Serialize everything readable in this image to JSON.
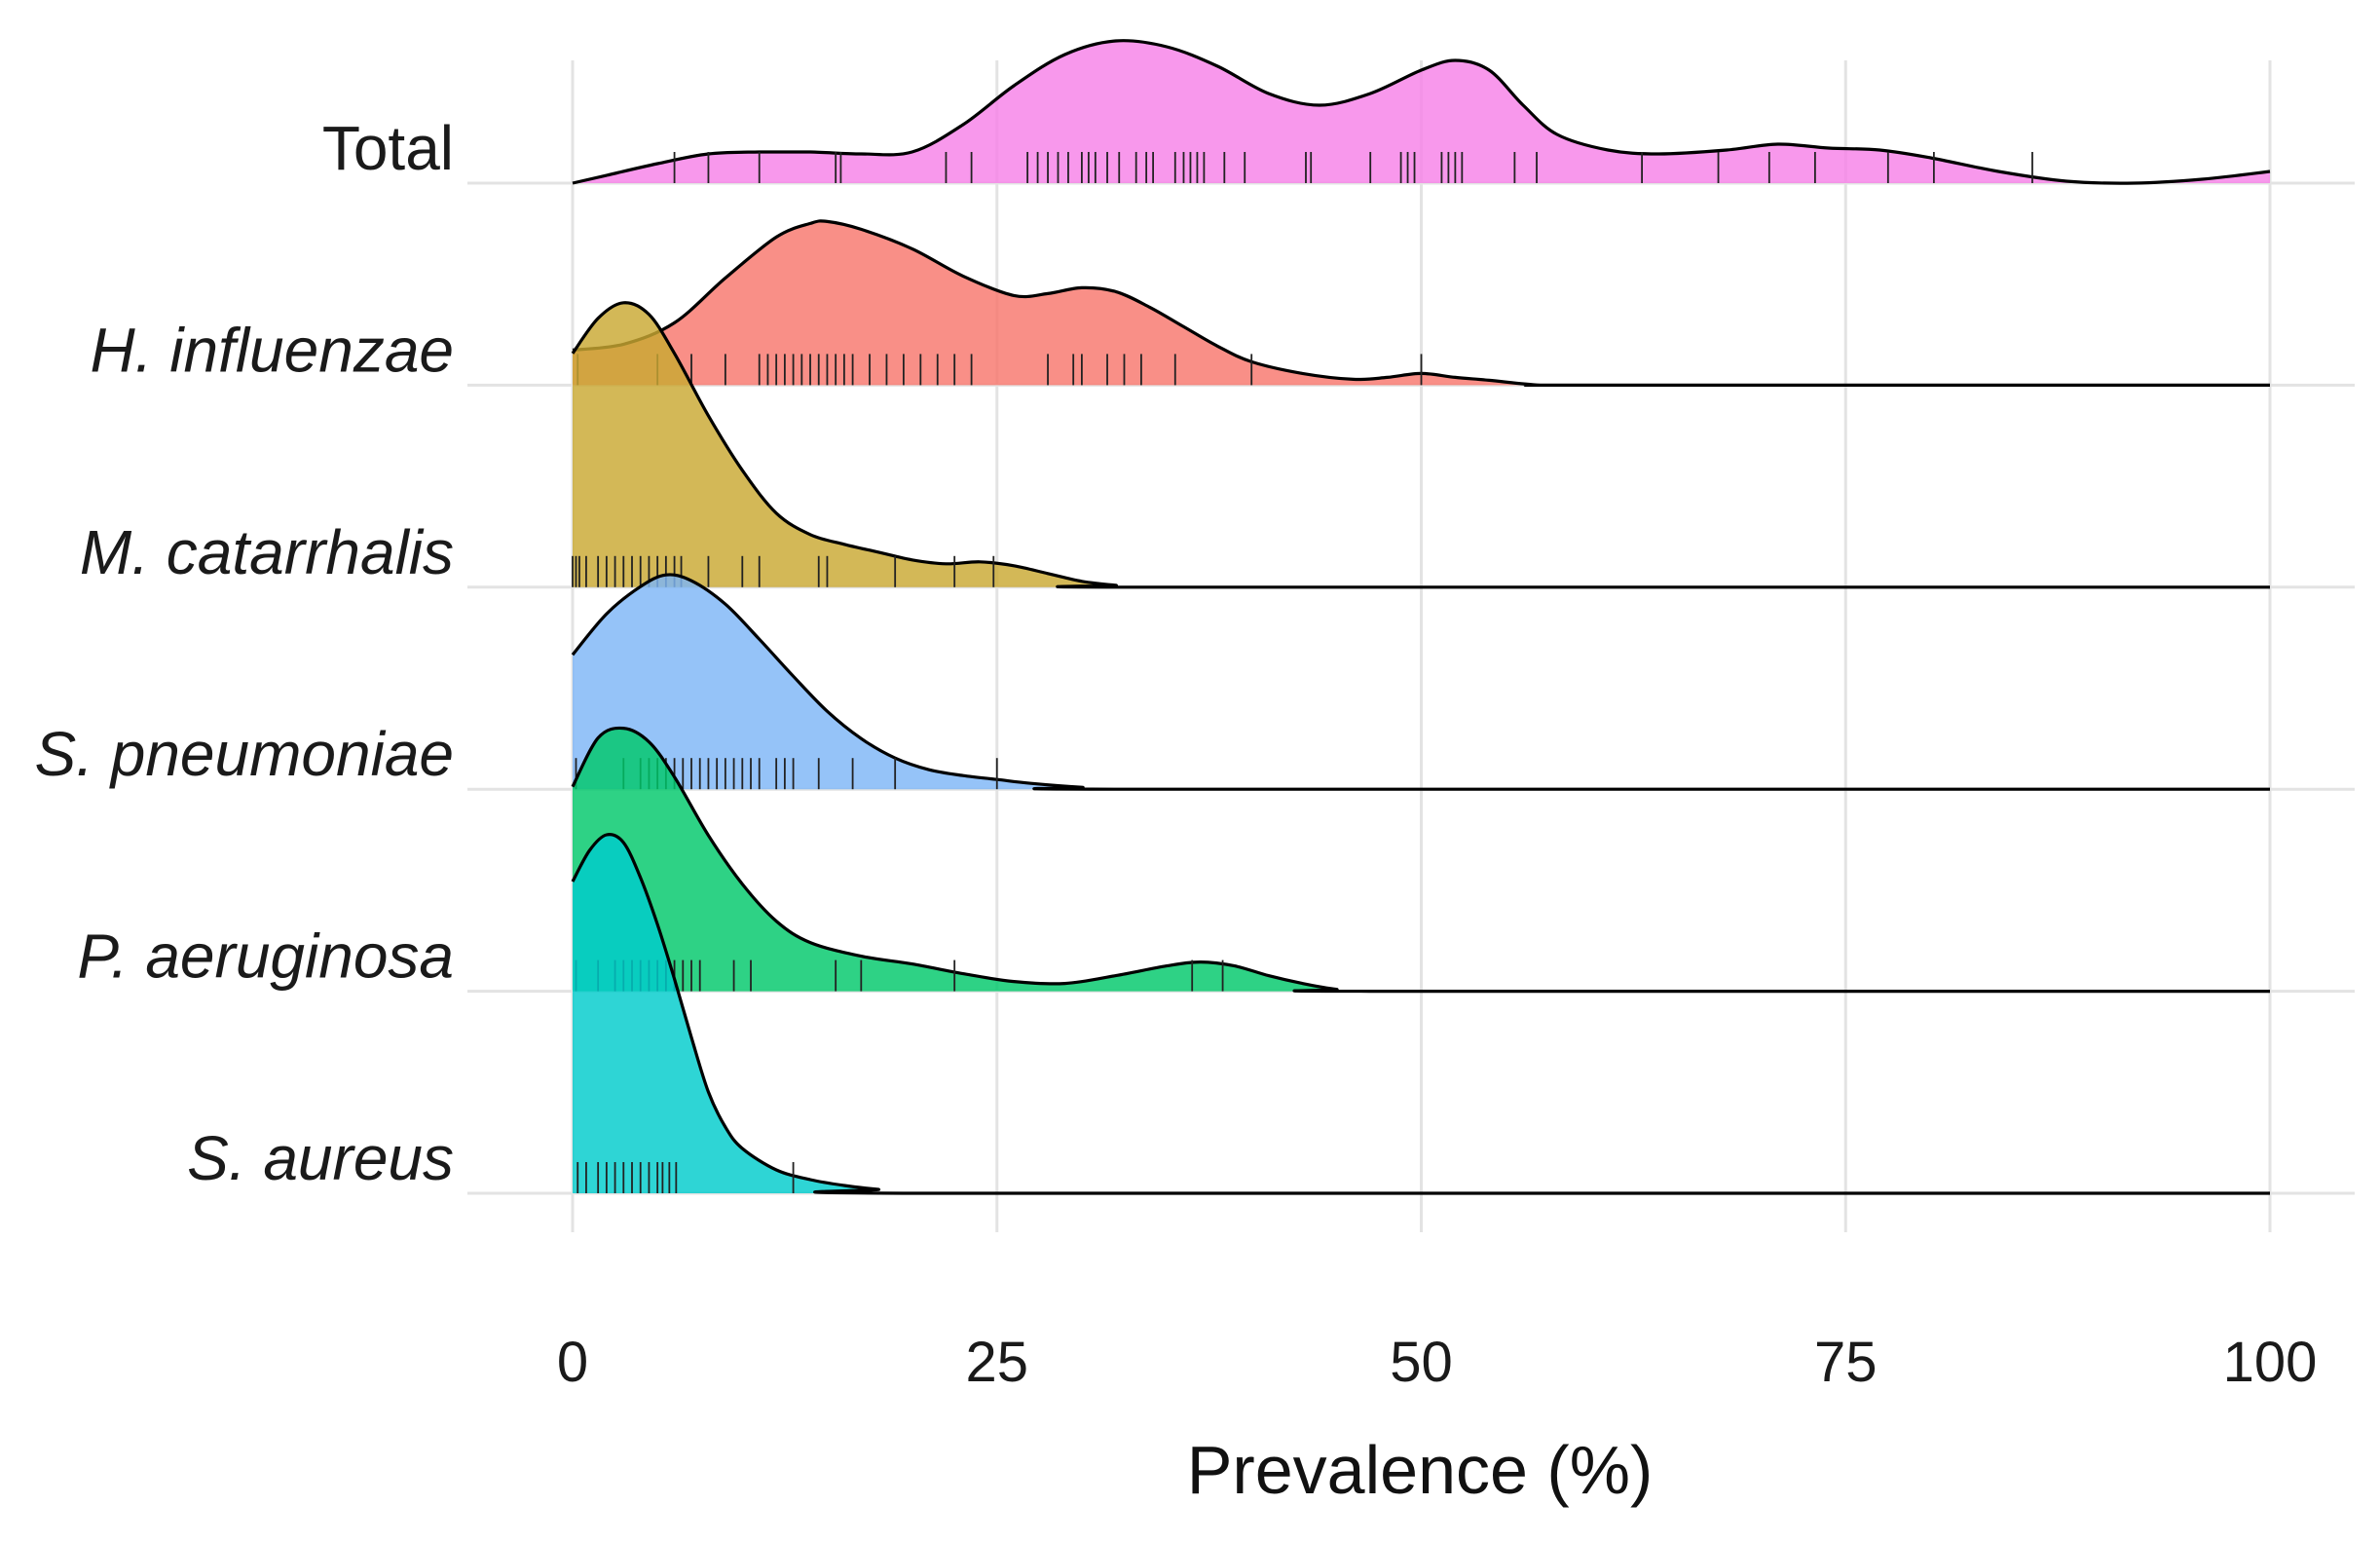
{
  "chart_data": {
    "type": "ridgeline-density",
    "title": "",
    "xlabel": "Prevalence (%)",
    "ylabel": "",
    "xlim": [
      0,
      100
    ],
    "xticks": [
      0,
      25,
      50,
      75,
      100
    ],
    "xtick_labels": [
      "0",
      "25",
      "50",
      "75",
      "100"
    ],
    "grid": true,
    "legend": "none",
    "series": [
      {
        "name": "Total",
        "italic": false,
        "color": "#F781E8",
        "density": [
          [
            0,
            0.0
          ],
          [
            2,
            0.04
          ],
          [
            5,
            0.1
          ],
          [
            8,
            0.15
          ],
          [
            11,
            0.16
          ],
          [
            14,
            0.16
          ],
          [
            17,
            0.15
          ],
          [
            20,
            0.16
          ],
          [
            23,
            0.3
          ],
          [
            26,
            0.5
          ],
          [
            29,
            0.66
          ],
          [
            32,
            0.73
          ],
          [
            35,
            0.7
          ],
          [
            38,
            0.6
          ],
          [
            41,
            0.46
          ],
          [
            44,
            0.4
          ],
          [
            47,
            0.46
          ],
          [
            50,
            0.58
          ],
          [
            52,
            0.63
          ],
          [
            54,
            0.58
          ],
          [
            56,
            0.4
          ],
          [
            58,
            0.25
          ],
          [
            61,
            0.17
          ],
          [
            64,
            0.15
          ],
          [
            68,
            0.17
          ],
          [
            71,
            0.2
          ],
          [
            74,
            0.18
          ],
          [
            77,
            0.17
          ],
          [
            80,
            0.13
          ],
          [
            84,
            0.06
          ],
          [
            88,
            0.01
          ],
          [
            92,
            0.0
          ],
          [
            96,
            0.02
          ],
          [
            100,
            0.06
          ]
        ],
        "rug": [
          6,
          8,
          11,
          15.5,
          15.8,
          22,
          23.5,
          26.8,
          27.4,
          28,
          28.6,
          29.2,
          30,
          30.4,
          30.8,
          31.5,
          32.2,
          33.2,
          33.8,
          34.2,
          35.5,
          36,
          36.4,
          36.8,
          37.2,
          38.4,
          39.6,
          43.2,
          43.5,
          47,
          48.8,
          49.2,
          49.6,
          51.2,
          51.6,
          52,
          52.4,
          55.5,
          56.8,
          63,
          67.5,
          70.5,
          73.2,
          77.5,
          80.2,
          86
        ]
      },
      {
        "name": "H. influenzae",
        "italic": true,
        "color": "#F8766D",
        "density": [
          [
            0,
            0.18
          ],
          [
            3,
            0.21
          ],
          [
            6,
            0.32
          ],
          [
            9,
            0.55
          ],
          [
            12,
            0.76
          ],
          [
            14,
            0.83
          ],
          [
            15,
            0.84
          ],
          [
            17,
            0.8
          ],
          [
            20,
            0.7
          ],
          [
            23,
            0.56
          ],
          [
            26,
            0.46
          ],
          [
            28,
            0.47
          ],
          [
            30,
            0.5
          ],
          [
            32,
            0.48
          ],
          [
            34,
            0.4
          ],
          [
            36,
            0.3
          ],
          [
            38,
            0.2
          ],
          [
            40,
            0.12
          ],
          [
            43,
            0.06
          ],
          [
            46,
            0.03
          ],
          [
            48,
            0.04
          ],
          [
            50,
            0.06
          ],
          [
            52,
            0.04
          ],
          [
            54,
            0.025
          ],
          [
            57,
            0.0
          ],
          [
            60,
            0.0
          ],
          [
            100,
            0.0
          ]
        ],
        "rug": [
          0.3,
          5,
          7,
          9,
          11,
          11.5,
          12,
          12.5,
          13,
          13.5,
          14,
          14.5,
          15,
          15.5,
          16,
          16.5,
          17.5,
          18.5,
          19.5,
          20.5,
          21.5,
          22.5,
          23.5,
          28,
          29.5,
          30,
          31.5,
          32.5,
          33.5,
          35.5,
          40,
          50
        ]
      },
      {
        "name": "M. catarrhalis",
        "italic": true,
        "color": "#C9A832",
        "density": [
          [
            0,
            1.2
          ],
          [
            1.5,
            1.38
          ],
          [
            3,
            1.46
          ],
          [
            4.5,
            1.4
          ],
          [
            6,
            1.2
          ],
          [
            8,
            0.88
          ],
          [
            10,
            0.6
          ],
          [
            12,
            0.38
          ],
          [
            14,
            0.27
          ],
          [
            16,
            0.22
          ],
          [
            18,
            0.18
          ],
          [
            20,
            0.14
          ],
          [
            22,
            0.12
          ],
          [
            24,
            0.13
          ],
          [
            26,
            0.11
          ],
          [
            28,
            0.07
          ],
          [
            30,
            0.03
          ],
          [
            32,
            0.01
          ],
          [
            34,
            0.0
          ],
          [
            100,
            0.0
          ]
        ],
        "rug": [
          0,
          0.2,
          0.4,
          0.8,
          1.5,
          2,
          2.5,
          3,
          3.5,
          4,
          4.5,
          5,
          5.5,
          6,
          6.4,
          8,
          10,
          11,
          14.5,
          15,
          19,
          22.5,
          24.8
        ]
      },
      {
        "name": "S. pneumoniae",
        "italic": true,
        "color": "#7EB6F7",
        "density": [
          [
            0,
            0.69
          ],
          [
            2,
            0.9
          ],
          [
            4,
            1.04
          ],
          [
            5.5,
            1.1
          ],
          [
            7,
            1.07
          ],
          [
            9,
            0.95
          ],
          [
            11,
            0.77
          ],
          [
            13,
            0.58
          ],
          [
            15,
            0.4
          ],
          [
            17,
            0.26
          ],
          [
            19,
            0.16
          ],
          [
            21,
            0.1
          ],
          [
            23,
            0.07
          ],
          [
            25,
            0.05
          ],
          [
            27,
            0.03
          ],
          [
            30,
            0.01
          ],
          [
            33,
            0.0
          ],
          [
            100,
            0.0
          ]
        ],
        "rug": [
          0.2,
          3,
          4,
          4.5,
          5,
          5.5,
          6,
          6.5,
          7,
          7.5,
          8,
          8.5,
          9,
          9.5,
          10,
          10.5,
          11,
          12,
          12.5,
          13,
          14.5,
          16.5,
          19,
          25
        ]
      },
      {
        "name": "P. aeruginosa",
        "italic": true,
        "color": "#00C86A",
        "density": [
          [
            0,
            1.05
          ],
          [
            1.5,
            1.3
          ],
          [
            3,
            1.35
          ],
          [
            4.5,
            1.28
          ],
          [
            6,
            1.1
          ],
          [
            8,
            0.8
          ],
          [
            10,
            0.55
          ],
          [
            12,
            0.36
          ],
          [
            14,
            0.25
          ],
          [
            17,
            0.18
          ],
          [
            20,
            0.14
          ],
          [
            23,
            0.09
          ],
          [
            26,
            0.05
          ],
          [
            29,
            0.04
          ],
          [
            32,
            0.08
          ],
          [
            35,
            0.13
          ],
          [
            37,
            0.15
          ],
          [
            39,
            0.13
          ],
          [
            41,
            0.08
          ],
          [
            43,
            0.04
          ],
          [
            45,
            0.01
          ],
          [
            47,
            0.0
          ],
          [
            100,
            0.0
          ]
        ],
        "rug": [
          0.2,
          1.5,
          2.5,
          3,
          3.5,
          4,
          4.5,
          5,
          5.5,
          6,
          6.5,
          7,
          7.5,
          9.5,
          10.5,
          15.5,
          17,
          22.5,
          36.5,
          38.3
        ]
      },
      {
        "name": "S. aureus",
        "italic": true,
        "color": "#00CCCC",
        "density": [
          [
            0,
            1.6
          ],
          [
            1,
            1.76
          ],
          [
            2,
            1.84
          ],
          [
            3,
            1.8
          ],
          [
            4,
            1.62
          ],
          [
            5,
            1.38
          ],
          [
            6,
            1.1
          ],
          [
            7,
            0.8
          ],
          [
            8,
            0.52
          ],
          [
            9,
            0.34
          ],
          [
            10,
            0.23
          ],
          [
            12,
            0.12
          ],
          [
            14,
            0.07
          ],
          [
            16,
            0.04
          ],
          [
            18,
            0.02
          ],
          [
            21,
            0.0
          ],
          [
            100,
            0.0
          ]
        ],
        "rug": [
          0.3,
          0.8,
          1.5,
          2,
          2.5,
          3,
          3.5,
          4,
          4.5,
          5,
          5.3,
          5.7,
          6.1,
          13
        ]
      }
    ]
  }
}
